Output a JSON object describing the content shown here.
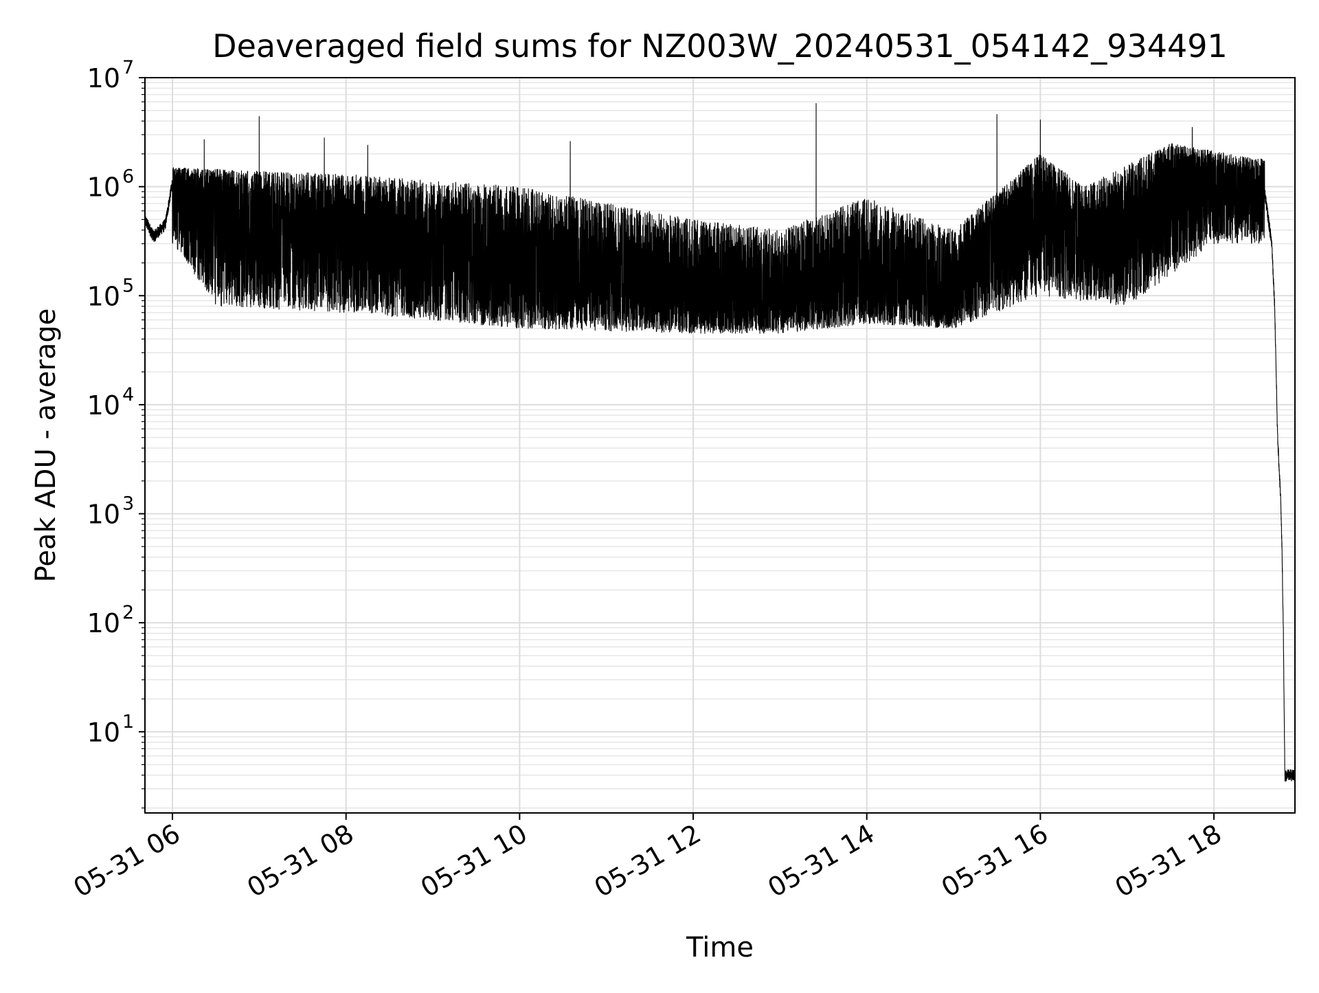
{
  "chart_data": {
    "type": "line",
    "title": "Deaveraged field sums for NZ003W_20240531_054142_934491",
    "xlabel": "Time",
    "ylabel": "Peak ADU - average",
    "y_scale": "log",
    "ylim": [
      1.8,
      10000000
    ],
    "xlim": [
      "05-31 05:41",
      "05-31 18:56"
    ],
    "grid": {
      "major": true,
      "minor_y": true
    },
    "legend": "none",
    "x_tick_labels": [
      "05-31 06",
      "05-31 08",
      "05-31 10",
      "05-31 12",
      "05-31 14",
      "05-31 16",
      "05-31 18"
    ],
    "x_tick_times": [
      "05-31 06:00",
      "05-31 08:00",
      "05-31 10:00",
      "05-31 12:00",
      "05-31 14:00",
      "05-31 16:00",
      "05-31 18:00"
    ],
    "y_tick_labels": [
      {
        "base": "10",
        "exp": "1",
        "value": 10
      },
      {
        "base": "10",
        "exp": "2",
        "value": 100
      },
      {
        "base": "10",
        "exp": "3",
        "value": 1000
      },
      {
        "base": "10",
        "exp": "4",
        "value": 10000
      },
      {
        "base": "10",
        "exp": "5",
        "value": 100000
      },
      {
        "base": "10",
        "exp": "6",
        "value": 1000000
      },
      {
        "base": "10",
        "exp": "7",
        "value": 10000000
      }
    ],
    "series": [
      {
        "color": "#000000",
        "points": [
          {
            "time": "05-31 05:41",
            "y": 500000
          },
          {
            "time": "05-31 05:47",
            "y": 350000
          },
          {
            "time": "05-31 05:55",
            "y": 450000
          },
          {
            "time": "05-31 06:00",
            "y": 1100000
          },
          {
            "time": "05-31 06:30",
            "y": 700000
          },
          {
            "time": "05-31 07:00",
            "y": 500000
          },
          {
            "time": "05-31 07:30",
            "y": 450000
          },
          {
            "time": "05-31 08:00",
            "y": 400000
          },
          {
            "time": "05-31 08:30",
            "y": 300000
          },
          {
            "time": "05-31 09:00",
            "y": 250000
          },
          {
            "time": "05-31 09:30",
            "y": 220000
          },
          {
            "time": "05-31 10:00",
            "y": 180000
          },
          {
            "time": "05-31 10:30",
            "y": 160000
          },
          {
            "time": "05-31 11:00",
            "y": 150000
          },
          {
            "time": "05-31 11:30",
            "y": 130000
          },
          {
            "time": "05-31 12:00",
            "y": 110000
          },
          {
            "time": "05-31 12:30",
            "y": 95000
          },
          {
            "time": "05-31 13:00",
            "y": 100000
          },
          {
            "time": "05-31 13:30",
            "y": 110000
          },
          {
            "time": "05-31 14:00",
            "y": 130000
          },
          {
            "time": "05-31 14:30",
            "y": 110000
          },
          {
            "time": "05-31 15:00",
            "y": 100000
          },
          {
            "time": "05-31 15:20",
            "y": 300000
          },
          {
            "time": "05-31 15:45",
            "y": 600000
          },
          {
            "time": "05-31 16:00",
            "y": 700000
          },
          {
            "time": "05-31 16:30",
            "y": 350000
          },
          {
            "time": "05-31 17:00",
            "y": 400000
          },
          {
            "time": "05-31 17:30",
            "y": 1100000
          },
          {
            "time": "05-31 18:00",
            "y": 1200000
          },
          {
            "time": "05-31 18:35",
            "y": 900000
          },
          {
            "time": "05-31 18:40",
            "y": 300000
          },
          {
            "time": "05-31 18:42",
            "y": 80000
          },
          {
            "time": "05-31 18:44",
            "y": 5000
          },
          {
            "time": "05-31 18:46",
            "y": 1500
          },
          {
            "time": "05-31 18:47",
            "y": 500
          },
          {
            "time": "05-31 18:48",
            "y": 80
          },
          {
            "time": "05-31 18:49",
            "y": 4
          },
          {
            "time": "05-31 18:56",
            "y": 4
          }
        ],
        "peaks": [
          {
            "time": "05-31 06:22",
            "y": 2700000
          },
          {
            "time": "05-31 07:00",
            "y": 4400000
          },
          {
            "time": "05-31 07:45",
            "y": 2800000
          },
          {
            "time": "05-31 08:15",
            "y": 2400000
          },
          {
            "time": "05-31 10:35",
            "y": 2600000
          },
          {
            "time": "05-31 13:25",
            "y": 5800000
          },
          {
            "time": "05-31 15:30",
            "y": 4600000
          },
          {
            "time": "05-31 16:00",
            "y": 4100000
          },
          {
            "time": "05-31 17:45",
            "y": 3500000
          }
        ],
        "band_upper": [
          {
            "time": "05-31 06:00",
            "y": 1500000
          },
          {
            "time": "05-31 08:00",
            "y": 1300000
          },
          {
            "time": "05-31 10:00",
            "y": 1000000
          },
          {
            "time": "05-31 12:00",
            "y": 500000
          },
          {
            "time": "05-31 13:00",
            "y": 400000
          },
          {
            "time": "05-31 14:00",
            "y": 800000
          },
          {
            "time": "05-31 15:00",
            "y": 400000
          },
          {
            "time": "05-31 16:00",
            "y": 2000000
          },
          {
            "time": "05-31 16:30",
            "y": 1000000
          },
          {
            "time": "05-31 17:30",
            "y": 2500000
          },
          {
            "time": "05-31 18:30",
            "y": 1800000
          }
        ],
        "band_lower": [
          {
            "time": "05-31 06:00",
            "y": 300000
          },
          {
            "time": "05-31 06:30",
            "y": 80000
          },
          {
            "time": "05-31 08:00",
            "y": 70000
          },
          {
            "time": "05-31 10:00",
            "y": 50000
          },
          {
            "time": "05-31 12:00",
            "y": 45000
          },
          {
            "time": "05-31 13:00",
            "y": 45000
          },
          {
            "time": "05-31 14:00",
            "y": 55000
          },
          {
            "time": "05-31 15:00",
            "y": 50000
          },
          {
            "time": "05-31 16:00",
            "y": 100000
          },
          {
            "time": "05-31 17:00",
            "y": 80000
          },
          {
            "time": "05-31 18:00",
            "y": 300000
          }
        ]
      }
    ]
  }
}
